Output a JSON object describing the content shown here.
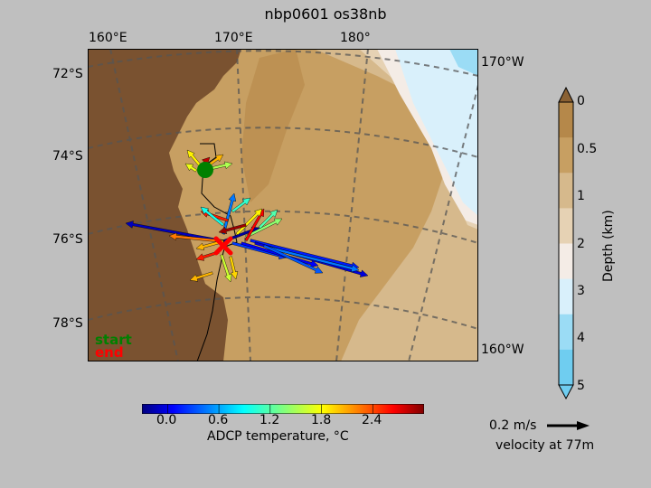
{
  "title": "nbp0601 os38nb",
  "map": {
    "lon_labels_top": [
      "160°E",
      "170°E",
      "180°"
    ],
    "lon_labels_right": [
      "170°W",
      "160°W"
    ],
    "lat_labels": [
      "72°S",
      "74°S",
      "76°S",
      "78°S"
    ],
    "legend_start": "start",
    "legend_end": "end",
    "start_color": "#008000",
    "end_color": "#ff0000",
    "land_color": "#7a5230"
  },
  "depth_colorbar": {
    "label": "Depth (km)",
    "ticks": [
      "0",
      "0.5",
      "1",
      "2",
      "3",
      "4",
      "5"
    ],
    "colors": [
      "#b5884a",
      "#c79f62",
      "#d6b98c",
      "#e6d2b4",
      "#f4ece6",
      "#d9f0fb",
      "#9bdcf5",
      "#6fcdf0"
    ]
  },
  "temp_colorbar": {
    "label": "ADCP temperature, °C",
    "ticks": [
      "0.0",
      "0.6",
      "1.2",
      "1.8",
      "2.4"
    ],
    "range": [
      -0.3,
      3.0
    ]
  },
  "velocity_scale": {
    "value": "0.2 m/s",
    "caption": "velocity at 77m"
  }
}
